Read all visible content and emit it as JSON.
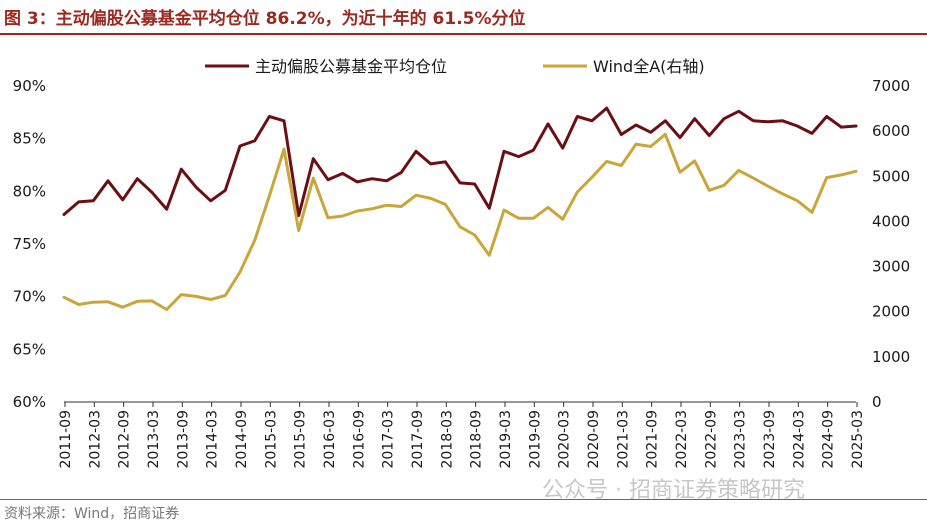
{
  "header": {
    "title": "图 3：主动偏股公募基金平均仓位 86.2%，为近十年的 61.5%分位"
  },
  "footer": {
    "source": "资料来源：Wind，招商证券",
    "watermark": "公众号 · 招商证券策略研究"
  },
  "colors": {
    "accent": "#9a2a20",
    "series_primary": "#6b0f14",
    "series_secondary": "#c9a53a"
  },
  "chart_data": {
    "type": "line",
    "title": "主动偏股公募基金平均仓位 86.2%，为近十年的 61.5%分位",
    "legend_position": "top",
    "grid": false,
    "y_left": {
      "min": 60,
      "max": 90,
      "step": 5,
      "ticks": [
        "60%",
        "65%",
        "70%",
        "75%",
        "80%",
        "85%",
        "90%"
      ]
    },
    "y_right": {
      "min": 0,
      "max": 7000,
      "step": 1000,
      "ticks": [
        "0",
        "1000",
        "2000",
        "3000",
        "4000",
        "5000",
        "6000",
        "7000"
      ]
    },
    "x_tick_labels": [
      "2011-09",
      "2012-03",
      "2012-09",
      "2013-03",
      "2013-09",
      "2014-03",
      "2014-09",
      "2015-03",
      "2015-09",
      "2016-03",
      "2016-09",
      "2017-03",
      "2017-09",
      "2018-03",
      "2018-09",
      "2019-03",
      "2019-09",
      "2020-03",
      "2020-09",
      "2021-03",
      "2021-09",
      "2022-03",
      "2022-09",
      "2023-03",
      "2023-09",
      "2024-03",
      "2024-09",
      "2025-03"
    ],
    "series": [
      {
        "name": "主动偏股公募基金平均仓位",
        "axis": "left",
        "values": [
          77.8,
          79.0,
          79.1,
          81.0,
          79.2,
          81.2,
          79.9,
          78.3,
          82.1,
          80.4,
          79.1,
          80.1,
          84.3,
          84.8,
          87.1,
          86.7,
          77.7,
          83.1,
          81.1,
          81.7,
          80.9,
          81.2,
          81.0,
          81.8,
          83.8,
          82.6,
          82.8,
          80.8,
          80.7,
          78.4,
          83.8,
          83.3,
          83.9,
          86.4,
          84.1,
          87.1,
          86.7,
          87.9,
          85.4,
          86.3,
          85.6,
          86.7,
          85.1,
          86.9,
          85.3,
          86.9,
          87.6,
          86.7,
          86.6,
          86.7,
          86.2,
          85.5,
          87.1,
          86.1,
          86.2
        ]
      },
      {
        "name": "Wind全A(右轴)",
        "axis": "right",
        "values": [
          2320,
          2160,
          2210,
          2220,
          2100,
          2230,
          2240,
          2050,
          2380,
          2340,
          2270,
          2360,
          2880,
          3580,
          4560,
          5600,
          3800,
          4960,
          4080,
          4120,
          4230,
          4280,
          4360,
          4330,
          4580,
          4510,
          4380,
          3880,
          3700,
          3250,
          4250,
          4070,
          4070,
          4310,
          4050,
          4650,
          4980,
          5330,
          5240,
          5710,
          5660,
          5930,
          5090,
          5340,
          4690,
          4800,
          5130,
          4960,
          4780,
          4610,
          4460,
          4200,
          4970,
          5030,
          5110
        ]
      }
    ]
  }
}
